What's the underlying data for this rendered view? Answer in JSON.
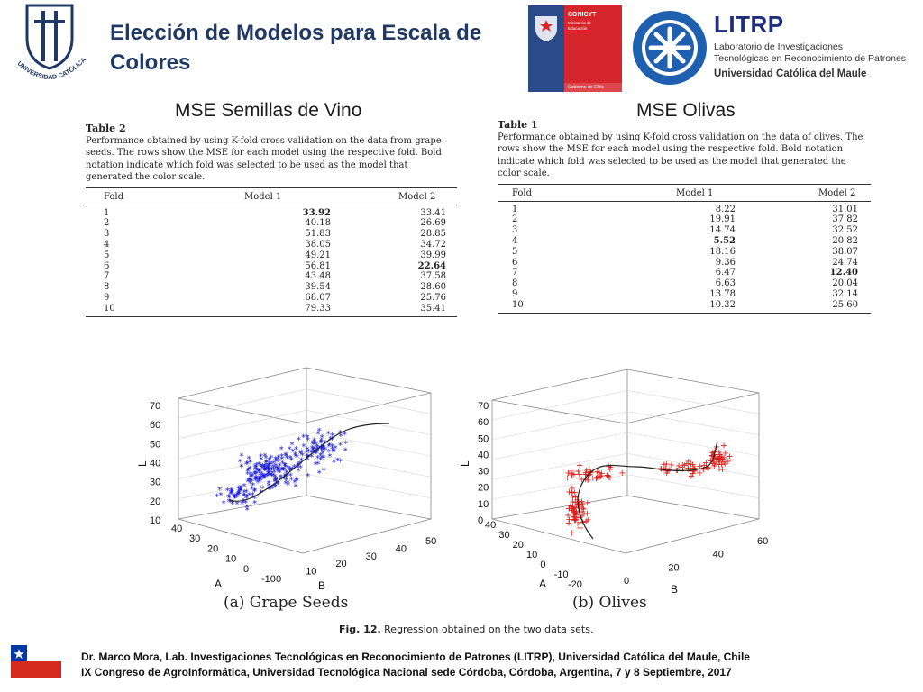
{
  "header": {
    "title": "Elección de  Modelos para Escala de Colores",
    "university_logo_text": "UNIVERSIDAD CATÓLICA DEL MAULE",
    "conicyt_logo": {
      "name": "CONICYT",
      "ministry_line1": "Ministerio de",
      "ministry_line2": "Educación",
      "government": "Gobierno de Chile"
    },
    "litrp_logo": {
      "name": "LITRP",
      "line1": "Laboratorio de Investigaciones",
      "line2": "Tecnológicas en Reconocimiento de Patrones",
      "line3": "Universidad Católica del Maule"
    }
  },
  "sections": {
    "left_heading": "MSE Semillas de Vino",
    "right_heading": "MSE Olivas"
  },
  "table_grape": {
    "title": "Table 2",
    "caption": "Performance obtained by using K-fold cross validation on the data from grape seeds. The rows show the MSE for each model using the respective fold. Bold notation indicate which fold was selected to be used as the model that generated the color scale.",
    "headers": [
      "Fold",
      "Model 1",
      "Model 2"
    ],
    "rows": [
      [
        "1",
        "33.92",
        "33.41"
      ],
      [
        "2",
        "40.18",
        "26.69"
      ],
      [
        "3",
        "51.83",
        "28.85"
      ],
      [
        "4",
        "38.05",
        "34.72"
      ],
      [
        "5",
        "49.21",
        "39.99"
      ],
      [
        "6",
        "56.81",
        "22.64"
      ],
      [
        "7",
        "43.48",
        "37.58"
      ],
      [
        "8",
        "39.54",
        "28.60"
      ],
      [
        "9",
        "68.07",
        "25.76"
      ],
      [
        "10",
        "79.33",
        "35.41"
      ]
    ]
  },
  "table_olives": {
    "title": "Table 1",
    "caption": "Performance obtained by using K-fold cross validation on the data of olives. The rows show the MSE for each model using the respective fold. Bold notation indicate which fold was selected to be used as the model that generated the color scale.",
    "headers": [
      "Fold",
      "Model 1",
      "Model 2"
    ],
    "rows": [
      [
        "1",
        "8.22",
        "31.01"
      ],
      [
        "2",
        "19.91",
        "37.82"
      ],
      [
        "3",
        "14.74",
        "32.52"
      ],
      [
        "4",
        "5.52",
        "20.82"
      ],
      [
        "5",
        "18.16",
        "38.07"
      ],
      [
        "6",
        "9.36",
        "24.74"
      ],
      [
        "7",
        "6.47",
        "12.40"
      ],
      [
        "8",
        "6.63",
        "20.04"
      ],
      [
        "9",
        "13.78",
        "32.14"
      ],
      [
        "10",
        "10.32",
        "25.60"
      ]
    ]
  },
  "plots": {
    "grape": {
      "caption": "(a) Grape Seeds",
      "color": "#1a1adb",
      "marker": "*",
      "z_label": "L",
      "x_label": "A",
      "y_label": "B",
      "z_ticks": [
        "70",
        "60",
        "50",
        "40",
        "30",
        "20",
        "10"
      ],
      "a_ticks": [
        "40",
        "30",
        "20",
        "10",
        "0",
        "-10"
      ],
      "b_ticks": [
        "0",
        "10",
        "20",
        "30",
        "40",
        "50"
      ]
    },
    "olives": {
      "caption": "(b) Olives",
      "color": "#e0201c",
      "marker": "+",
      "z_label": "L",
      "x_label": "A",
      "y_label": "B",
      "z_ticks": [
        "70",
        "60",
        "50",
        "40",
        "30",
        "20",
        "10",
        "0"
      ],
      "a_ticks": [
        "40",
        "30",
        "20",
        "10",
        "0",
        "-10",
        "-20"
      ],
      "b_ticks": [
        "0",
        "20",
        "40",
        "60"
      ]
    },
    "figure_label": "Fig. 12.",
    "figure_text": "Regression obtained on the two data sets."
  },
  "footer": {
    "line1": "Dr. Marco Mora, Lab.  Investigaciones Tecnológicas en Reconocimiento de Patrones (LITRP), Universidad Católica del Maule, Chile",
    "line2": "IX Congreso de AgroInformática, Universidad Tecnológica Nacional sede Córdoba, Córdoba, Argentina, 7 y 8 Septiembre, 2017"
  }
}
